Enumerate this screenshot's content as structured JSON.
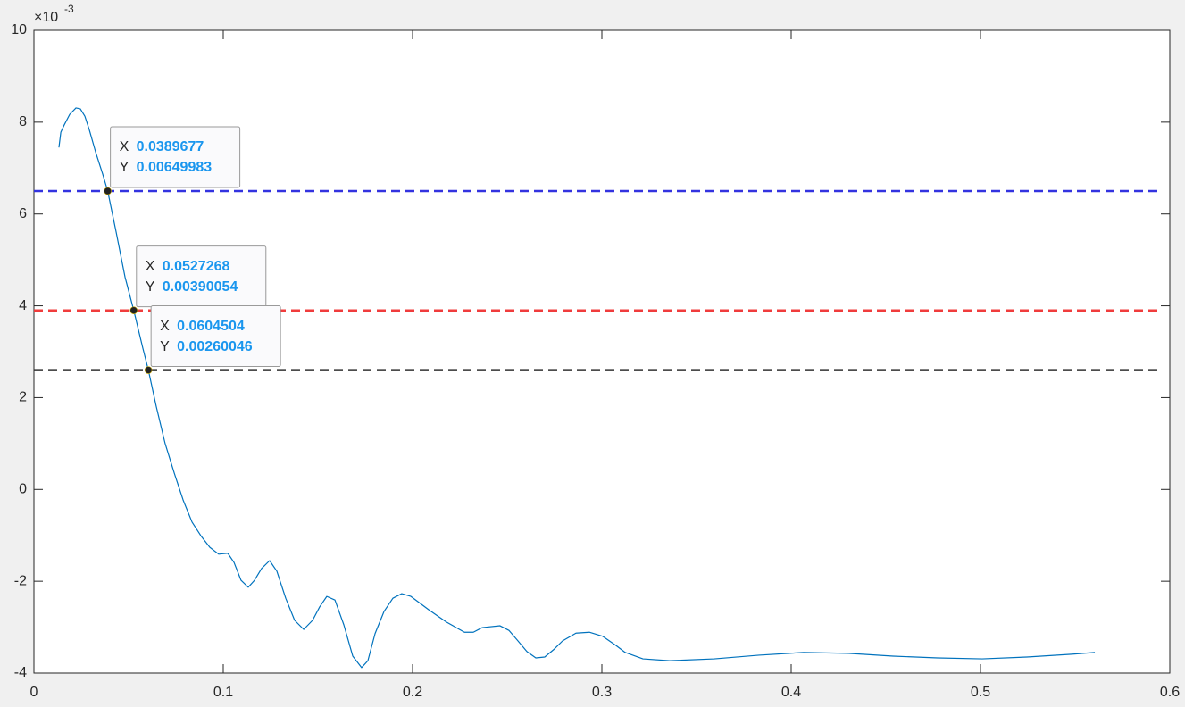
{
  "chart_data": {
    "type": "line",
    "y_multiplier_base": "×10",
    "y_exponent": -3,
    "xlim": [
      0,
      0.6
    ],
    "xticks": [
      0,
      0.1,
      0.2,
      0.3,
      0.4,
      0.5,
      0.6
    ],
    "ylim": [
      -0.004,
      0.01
    ],
    "yticks": [
      {
        "value": -0.004,
        "label": "-4"
      },
      {
        "value": -0.002,
        "label": "-2"
      },
      {
        "value": 0,
        "label": "0"
      },
      {
        "value": 0.002,
        "label": "2"
      },
      {
        "value": 0.004,
        "label": "4"
      },
      {
        "value": 0.006,
        "label": "6"
      },
      {
        "value": 0.008,
        "label": "8"
      },
      {
        "value": 0.01,
        "label": "10"
      }
    ],
    "grid": false,
    "series": [
      {
        "color": "#0072bd",
        "x": [
          0.0132,
          0.0142,
          0.016,
          0.0189,
          0.0222,
          0.0245,
          0.0269,
          0.0292,
          0.0325,
          0.0363,
          0.0389677,
          0.0434,
          0.0481,
          0.0527268,
          0.0575,
          0.0604504,
          0.0646,
          0.0693,
          0.0741,
          0.0788,
          0.0835,
          0.0882,
          0.0929,
          0.0976,
          0.1024,
          0.1057,
          0.1094,
          0.1132,
          0.1165,
          0.1203,
          0.1245,
          0.1283,
          0.133,
          0.1377,
          0.1425,
          0.1472,
          0.1509,
          0.1547,
          0.159,
          0.1637,
          0.1684,
          0.1731,
          0.1764,
          0.1802,
          0.1849,
          0.1896,
          0.1943,
          0.1991,
          0.2085,
          0.2179,
          0.2274,
          0.2321,
          0.2368,
          0.2462,
          0.2509,
          0.2557,
          0.2604,
          0.2651,
          0.2698,
          0.2745,
          0.2792,
          0.2863,
          0.2934,
          0.3005,
          0.3075,
          0.3123,
          0.3217,
          0.3358,
          0.3594,
          0.383,
          0.4066,
          0.4302,
          0.4538,
          0.4774,
          0.5009,
          0.5245,
          0.5481,
          0.5604
        ],
        "values": [
          0.00745,
          0.00778,
          0.00794,
          0.00817,
          0.00831,
          0.00829,
          0.00813,
          0.00784,
          0.00736,
          0.00687,
          0.00649983,
          0.00561,
          0.00463,
          0.00390054,
          0.00308,
          0.00260046,
          0.00181,
          0.001,
          0.00036,
          -0.00023,
          -0.00071,
          -0.00101,
          -0.00126,
          -0.00141,
          -0.00139,
          -0.00159,
          -0.00198,
          -0.00213,
          -0.00198,
          -0.00172,
          -0.00155,
          -0.00178,
          -0.00237,
          -0.00285,
          -0.00305,
          -0.00285,
          -0.00256,
          -0.00233,
          -0.00241,
          -0.00295,
          -0.00363,
          -0.00388,
          -0.00373,
          -0.00314,
          -0.00266,
          -0.00237,
          -0.00227,
          -0.00233,
          -0.00262,
          -0.00289,
          -0.00311,
          -0.00311,
          -0.00301,
          -0.00297,
          -0.00307,
          -0.0033,
          -0.00353,
          -0.00367,
          -0.00365,
          -0.00349,
          -0.0033,
          -0.00313,
          -0.00311,
          -0.0032,
          -0.0034,
          -0.00355,
          -0.00369,
          -0.00373,
          -0.00369,
          -0.00361,
          -0.00355,
          -0.00357,
          -0.00363,
          -0.00367,
          -0.00369,
          -0.00365,
          -0.00359,
          -0.00355
        ]
      }
    ],
    "hlines": [
      {
        "y": 0.0065,
        "color": "#3333e0"
      },
      {
        "y": 0.0039,
        "color": "#f03c3c"
      },
      {
        "y": 0.0026,
        "color": "#333333"
      }
    ],
    "datatip_labels": [
      "X",
      "Y"
    ],
    "datatips": [
      {
        "x": 0.0389677,
        "y": 0.00649983
      },
      {
        "x": 0.0527268,
        "y": 0.00390054
      },
      {
        "x": 0.0604504,
        "y": 0.00260046
      }
    ]
  }
}
